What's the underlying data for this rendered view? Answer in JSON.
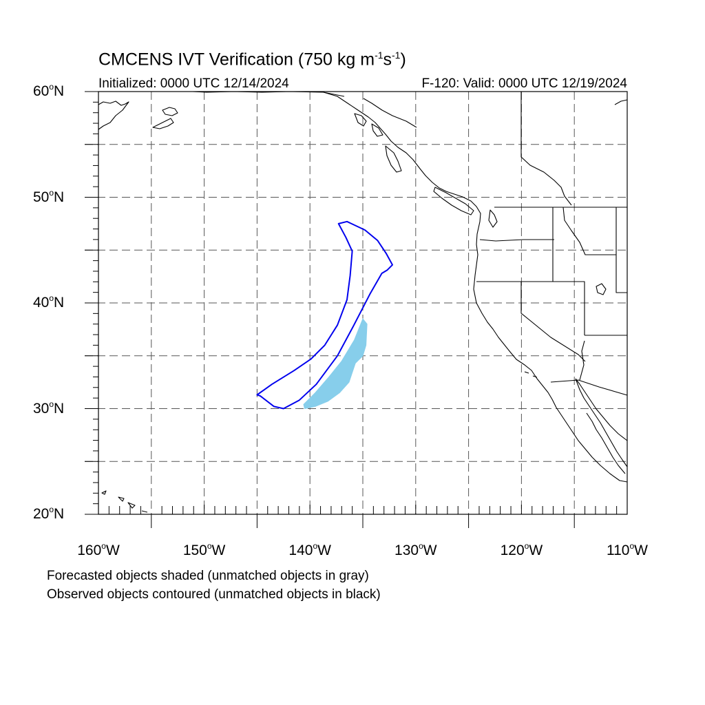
{
  "title": {
    "text": "CMCENS IVT Verification (750 kg m",
    "sup1": "-1",
    "mid": "s",
    "sup2": "-1",
    "close": ")"
  },
  "init_label": "Initialized: 0000 UTC 12/14/2024",
  "valid_label": "F-120: Valid: 0000 UTC 12/19/2024",
  "lat_labels": [
    {
      "num": "60",
      "deg": "o",
      "hem": "N"
    },
    {
      "num": "50",
      "deg": "o",
      "hem": "N"
    },
    {
      "num": "40",
      "deg": "o",
      "hem": "N"
    },
    {
      "num": "30",
      "deg": "o",
      "hem": "N"
    },
    {
      "num": "20",
      "deg": "o",
      "hem": "N"
    }
  ],
  "lon_labels": [
    {
      "num": "160",
      "deg": "o",
      "hem": "W"
    },
    {
      "num": "150",
      "deg": "o",
      "hem": "W"
    },
    {
      "num": "140",
      "deg": "o",
      "hem": "W"
    },
    {
      "num": "130",
      "deg": "o",
      "hem": "W"
    },
    {
      "num": "120",
      "deg": "o",
      "hem": "W"
    },
    {
      "num": "110",
      "deg": "o",
      "hem": "W"
    }
  ],
  "notes": {
    "forecast": "Forecasted objects shaded (unmatched objects in gray)",
    "observed": "Observed objects contoured (unmatched objects in black)"
  },
  "map": {
    "lon_range": [
      -160,
      -110
    ],
    "lat_range": [
      20,
      60
    ],
    "grid_lines": "dashed every 5 degrees",
    "colors": {
      "forecast_fill": "#87ceeb",
      "observed_contour": "#0000ee",
      "coast": "#000000",
      "grid": "#555555"
    },
    "forecast_object_outline": [
      [
        -135,
        38.5
      ],
      [
        -134.6,
        38
      ],
      [
        -134.7,
        36
      ],
      [
        -135,
        35
      ],
      [
        -135.7,
        34.3
      ],
      [
        -136.3,
        32.5
      ],
      [
        -137.2,
        31.5
      ],
      [
        -138.3,
        30.7
      ],
      [
        -139.5,
        30.2
      ],
      [
        -140.5,
        30
      ],
      [
        -140.6,
        30.4
      ],
      [
        -139.5,
        31.5
      ],
      [
        -138.2,
        33.0
      ],
      [
        -137,
        34.5
      ],
      [
        -135.8,
        36.5
      ],
      [
        -135,
        38.5
      ]
    ],
    "observed_object_outline": [
      [
        -137.3,
        47.5
      ],
      [
        -136.5,
        47.7
      ],
      [
        -134.8,
        46.9
      ],
      [
        -133.6,
        45.9
      ],
      [
        -132.8,
        44.7
      ],
      [
        -132.2,
        43.6
      ],
      [
        -132.7,
        43.1
      ],
      [
        -133.2,
        42.8
      ],
      [
        -134.3,
        40.9
      ],
      [
        -135.9,
        37.8
      ],
      [
        -137.4,
        35.0
      ],
      [
        -139.4,
        32.3
      ],
      [
        -141.0,
        30.8
      ],
      [
        -142.5,
        30.0
      ],
      [
        -143.4,
        30.2
      ],
      [
        -144.7,
        31.2
      ],
      [
        -145.0,
        31.3
      ],
      [
        -143.6,
        32.3
      ],
      [
        -141.5,
        33.6
      ],
      [
        -139.9,
        34.7
      ],
      [
        -138.6,
        36.0
      ],
      [
        -137.4,
        37.9
      ],
      [
        -136.5,
        40.3
      ],
      [
        -136.2,
        42.6
      ],
      [
        -136.0,
        44.9
      ],
      [
        -136.6,
        46.2
      ],
      [
        -137.3,
        47.5
      ]
    ]
  }
}
